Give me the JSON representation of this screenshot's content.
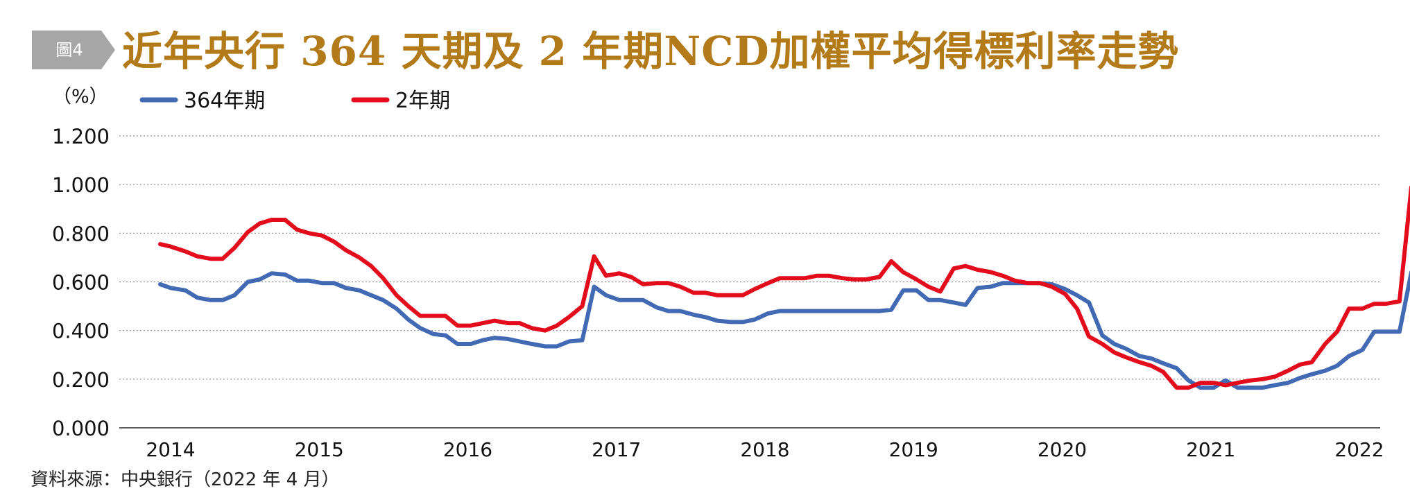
{
  "header": {
    "badge": "圖4",
    "title": "近年央行 364 天期及 2 年期NCD加權平均得標利率走勢"
  },
  "source": "資料來源：中央銀行（2022 年 4 月）",
  "colors": {
    "title": "#b37a1a",
    "badge": "#a6a6a6",
    "series_364": "#4169b4",
    "series_2y": "#e30b1c"
  },
  "chart_data": {
    "type": "line",
    "title": "近年央行 364 天期及 2 年期NCD加權平均得標利率走勢",
    "ylabel": "（%）",
    "xlabel": "",
    "ylim": [
      0,
      1.2
    ],
    "xlim": [
      2014,
      2022
    ],
    "yticks": [
      "0.000",
      "0.200",
      "0.400",
      "0.600",
      "0.800",
      "1.000",
      "1.200"
    ],
    "xticks": [
      "2014",
      "2015",
      "2016",
      "2017",
      "2018",
      "2019",
      "2020",
      "2021",
      "2022"
    ],
    "grid": true,
    "legend": "top-left",
    "series": [
      {
        "name": "364年期",
        "color": "#4169b4",
        "points": [
          [
            2013.93,
            0.59
          ],
          [
            2014.0,
            0.575
          ],
          [
            2014.1,
            0.565
          ],
          [
            2014.18,
            0.535
          ],
          [
            2014.27,
            0.525
          ],
          [
            2014.35,
            0.525
          ],
          [
            2014.43,
            0.545
          ],
          [
            2014.52,
            0.6
          ],
          [
            2014.6,
            0.61
          ],
          [
            2014.68,
            0.635
          ],
          [
            2014.77,
            0.63
          ],
          [
            2014.85,
            0.605
          ],
          [
            2014.93,
            0.605
          ],
          [
            2015.02,
            0.595
          ],
          [
            2015.1,
            0.595
          ],
          [
            2015.18,
            0.575
          ],
          [
            2015.27,
            0.565
          ],
          [
            2015.35,
            0.545
          ],
          [
            2015.43,
            0.525
          ],
          [
            2015.52,
            0.49
          ],
          [
            2015.6,
            0.445
          ],
          [
            2015.68,
            0.41
          ],
          [
            2015.77,
            0.385
          ],
          [
            2015.85,
            0.38
          ],
          [
            2015.93,
            0.345
          ],
          [
            2016.02,
            0.345
          ],
          [
            2016.1,
            0.36
          ],
          [
            2016.18,
            0.37
          ],
          [
            2016.27,
            0.365
          ],
          [
            2016.35,
            0.355
          ],
          [
            2016.43,
            0.345
          ],
          [
            2016.52,
            0.335
          ],
          [
            2016.6,
            0.335
          ],
          [
            2016.68,
            0.355
          ],
          [
            2016.77,
            0.36
          ],
          [
            2016.85,
            0.58
          ],
          [
            2016.93,
            0.545
          ],
          [
            2017.02,
            0.525
          ],
          [
            2017.1,
            0.525
          ],
          [
            2017.18,
            0.525
          ],
          [
            2017.27,
            0.495
          ],
          [
            2017.35,
            0.48
          ],
          [
            2017.43,
            0.48
          ],
          [
            2017.52,
            0.465
          ],
          [
            2017.6,
            0.455
          ],
          [
            2017.68,
            0.44
          ],
          [
            2017.77,
            0.435
          ],
          [
            2017.85,
            0.435
          ],
          [
            2017.93,
            0.445
          ],
          [
            2018.02,
            0.47
          ],
          [
            2018.1,
            0.48
          ],
          [
            2018.18,
            0.48
          ],
          [
            2018.27,
            0.48
          ],
          [
            2018.35,
            0.48
          ],
          [
            2018.43,
            0.48
          ],
          [
            2018.52,
            0.48
          ],
          [
            2018.6,
            0.48
          ],
          [
            2018.68,
            0.48
          ],
          [
            2018.77,
            0.48
          ],
          [
            2018.85,
            0.485
          ],
          [
            2018.93,
            0.565
          ],
          [
            2019.02,
            0.565
          ],
          [
            2019.1,
            0.525
          ],
          [
            2019.18,
            0.525
          ],
          [
            2019.27,
            0.515
          ],
          [
            2019.35,
            0.505
          ],
          [
            2019.43,
            0.575
          ],
          [
            2019.52,
            0.58
          ],
          [
            2019.6,
            0.595
          ],
          [
            2019.68,
            0.595
          ],
          [
            2019.77,
            0.595
          ],
          [
            2019.85,
            0.595
          ],
          [
            2019.93,
            0.59
          ],
          [
            2020.02,
            0.57
          ],
          [
            2020.1,
            0.545
          ],
          [
            2020.18,
            0.515
          ],
          [
            2020.27,
            0.38
          ],
          [
            2020.35,
            0.345
          ],
          [
            2020.43,
            0.325
          ],
          [
            2020.52,
            0.295
          ],
          [
            2020.6,
            0.285
          ],
          [
            2020.68,
            0.265
          ],
          [
            2020.77,
            0.245
          ],
          [
            2020.85,
            0.195
          ],
          [
            2020.93,
            0.165
          ],
          [
            2021.02,
            0.165
          ],
          [
            2021.1,
            0.195
          ],
          [
            2021.18,
            0.165
          ],
          [
            2021.27,
            0.165
          ],
          [
            2021.35,
            0.165
          ],
          [
            2021.43,
            0.175
          ],
          [
            2021.52,
            0.185
          ],
          [
            2021.6,
            0.205
          ],
          [
            2021.68,
            0.22
          ],
          [
            2021.77,
            0.235
          ],
          [
            2021.85,
            0.255
          ],
          [
            2021.93,
            0.295
          ],
          [
            2022.02,
            0.32
          ],
          [
            2022.1,
            0.395
          ],
          [
            2022.18,
            0.395
          ],
          [
            2022.27,
            0.395
          ],
          [
            2022.35,
            0.64
          ]
        ]
      },
      {
        "name": "2年期",
        "color": "#e30b1c",
        "points": [
          [
            2013.93,
            0.755
          ],
          [
            2014.0,
            0.745
          ],
          [
            2014.1,
            0.725
          ],
          [
            2014.18,
            0.705
          ],
          [
            2014.27,
            0.695
          ],
          [
            2014.35,
            0.695
          ],
          [
            2014.43,
            0.74
          ],
          [
            2014.52,
            0.805
          ],
          [
            2014.6,
            0.84
          ],
          [
            2014.68,
            0.855
          ],
          [
            2014.77,
            0.855
          ],
          [
            2014.85,
            0.815
          ],
          [
            2014.93,
            0.8
          ],
          [
            2015.02,
            0.79
          ],
          [
            2015.1,
            0.765
          ],
          [
            2015.18,
            0.73
          ],
          [
            2015.27,
            0.7
          ],
          [
            2015.35,
            0.665
          ],
          [
            2015.43,
            0.615
          ],
          [
            2015.52,
            0.545
          ],
          [
            2015.6,
            0.5
          ],
          [
            2015.68,
            0.46
          ],
          [
            2015.77,
            0.46
          ],
          [
            2015.85,
            0.46
          ],
          [
            2015.93,
            0.42
          ],
          [
            2016.02,
            0.42
          ],
          [
            2016.1,
            0.43
          ],
          [
            2016.18,
            0.44
          ],
          [
            2016.27,
            0.43
          ],
          [
            2016.35,
            0.43
          ],
          [
            2016.43,
            0.41
          ],
          [
            2016.52,
            0.4
          ],
          [
            2016.6,
            0.42
          ],
          [
            2016.68,
            0.455
          ],
          [
            2016.77,
            0.5
          ],
          [
            2016.85,
            0.705
          ],
          [
            2016.93,
            0.625
          ],
          [
            2017.02,
            0.635
          ],
          [
            2017.1,
            0.62
          ],
          [
            2017.18,
            0.59
          ],
          [
            2017.27,
            0.595
          ],
          [
            2017.35,
            0.595
          ],
          [
            2017.43,
            0.58
          ],
          [
            2017.52,
            0.555
          ],
          [
            2017.6,
            0.555
          ],
          [
            2017.68,
            0.545
          ],
          [
            2017.77,
            0.545
          ],
          [
            2017.85,
            0.545
          ],
          [
            2017.93,
            0.57
          ],
          [
            2018.02,
            0.595
          ],
          [
            2018.1,
            0.615
          ],
          [
            2018.18,
            0.615
          ],
          [
            2018.27,
            0.615
          ],
          [
            2018.35,
            0.625
          ],
          [
            2018.43,
            0.625
          ],
          [
            2018.52,
            0.615
          ],
          [
            2018.6,
            0.61
          ],
          [
            2018.68,
            0.61
          ],
          [
            2018.77,
            0.62
          ],
          [
            2018.85,
            0.685
          ],
          [
            2018.93,
            0.64
          ],
          [
            2019.02,
            0.61
          ],
          [
            2019.1,
            0.58
          ],
          [
            2019.18,
            0.56
          ],
          [
            2019.27,
            0.655
          ],
          [
            2019.35,
            0.665
          ],
          [
            2019.43,
            0.65
          ],
          [
            2019.52,
            0.64
          ],
          [
            2019.6,
            0.625
          ],
          [
            2019.68,
            0.605
          ],
          [
            2019.77,
            0.595
          ],
          [
            2019.85,
            0.595
          ],
          [
            2019.93,
            0.58
          ],
          [
            2020.02,
            0.55
          ],
          [
            2020.1,
            0.49
          ],
          [
            2020.18,
            0.375
          ],
          [
            2020.27,
            0.345
          ],
          [
            2020.35,
            0.31
          ],
          [
            2020.43,
            0.29
          ],
          [
            2020.52,
            0.27
          ],
          [
            2020.6,
            0.255
          ],
          [
            2020.68,
            0.23
          ],
          [
            2020.77,
            0.165
          ],
          [
            2020.85,
            0.165
          ],
          [
            2020.93,
            0.185
          ],
          [
            2021.02,
            0.185
          ],
          [
            2021.1,
            0.175
          ],
          [
            2021.18,
            0.185
          ],
          [
            2021.27,
            0.195
          ],
          [
            2021.35,
            0.2
          ],
          [
            2021.43,
            0.21
          ],
          [
            2021.52,
            0.235
          ],
          [
            2021.6,
            0.26
          ],
          [
            2021.68,
            0.27
          ],
          [
            2021.77,
            0.345
          ],
          [
            2021.85,
            0.395
          ],
          [
            2021.93,
            0.49
          ],
          [
            2022.02,
            0.49
          ],
          [
            2022.1,
            0.51
          ],
          [
            2022.18,
            0.51
          ],
          [
            2022.27,
            0.52
          ],
          [
            2022.35,
            0.99
          ]
        ]
      }
    ]
  }
}
